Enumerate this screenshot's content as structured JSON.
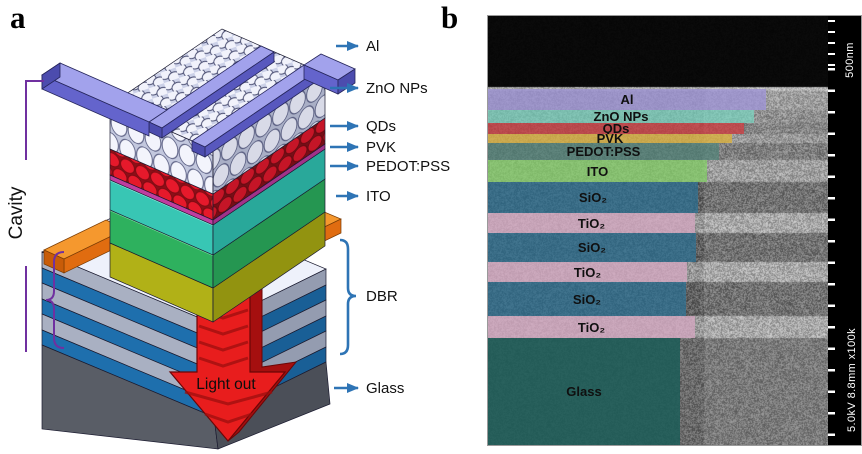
{
  "figure": {
    "panel_a_letter": "a",
    "panel_b_letter": "b",
    "background": "#ffffff"
  },
  "panel_a": {
    "arrow_labels": [
      {
        "text": "Al"
      },
      {
        "text": "ZnO NPs"
      },
      {
        "text": "QDs"
      },
      {
        "text": "PVK"
      },
      {
        "text": "PEDOT:PSS"
      },
      {
        "text": "ITO"
      },
      {
        "text": "DBR"
      },
      {
        "text": "Glass"
      }
    ],
    "cavity_label": "Cavity",
    "light_out_label": "Light out",
    "colors": {
      "label_arrow": "#2e74b5",
      "cavity_bracket": "#7030a0",
      "al_electrode_top": "#a2a2ec",
      "al_electrode_front": "#6464cc",
      "zno_balls": "#f3f4fc",
      "qd_balls": "#e6192b",
      "pvk": "#c03da0",
      "pedot_pss": "#38c6b4",
      "ito_film": "#2eb15e",
      "ito_pad": "#f08122",
      "spacer_olive": "#b1b117",
      "dbr_gray": "#a9b0c2",
      "dbr_blue": "#1e6fad",
      "glass": "#595d66",
      "light_out_arrow": "#e81d1d"
    }
  },
  "panel_b": {
    "layers": [
      {
        "label": "Al",
        "tint": "rgba(158,148,212,0.80)"
      },
      {
        "label": "ZnO NPs",
        "tint": "rgba(122,214,192,0.72)"
      },
      {
        "label": "QDs",
        "tint": "rgba(202,62,66,0.80)"
      },
      {
        "label": "PVK",
        "tint": "rgba(218,176,62,0.80)"
      },
      {
        "label": "PEDOT:PSS",
        "tint": "rgba(82,132,122,0.74)"
      },
      {
        "label": "ITO",
        "tint": "rgba(132,206,102,0.76)"
      },
      {
        "label": "SiO₂",
        "tint": "rgba(42,112,148,0.72)"
      },
      {
        "label": "TiO₂",
        "tint": "rgba(212,166,192,0.78)"
      },
      {
        "label": "SiO₂",
        "tint": "rgba(42,112,148,0.72)"
      },
      {
        "label": "TiO₂",
        "tint": "rgba(212,166,192,0.78)"
      },
      {
        "label": "SiO₂",
        "tint": "rgba(42,112,148,0.72)"
      },
      {
        "label": "TiO₂",
        "tint": "rgba(212,166,192,0.78)"
      },
      {
        "label": "Glass",
        "tint": "rgba(28,92,88,0.88)"
      }
    ],
    "scale_label": "500nm",
    "meta_label": "5.0kV 8.8mm x100k"
  }
}
